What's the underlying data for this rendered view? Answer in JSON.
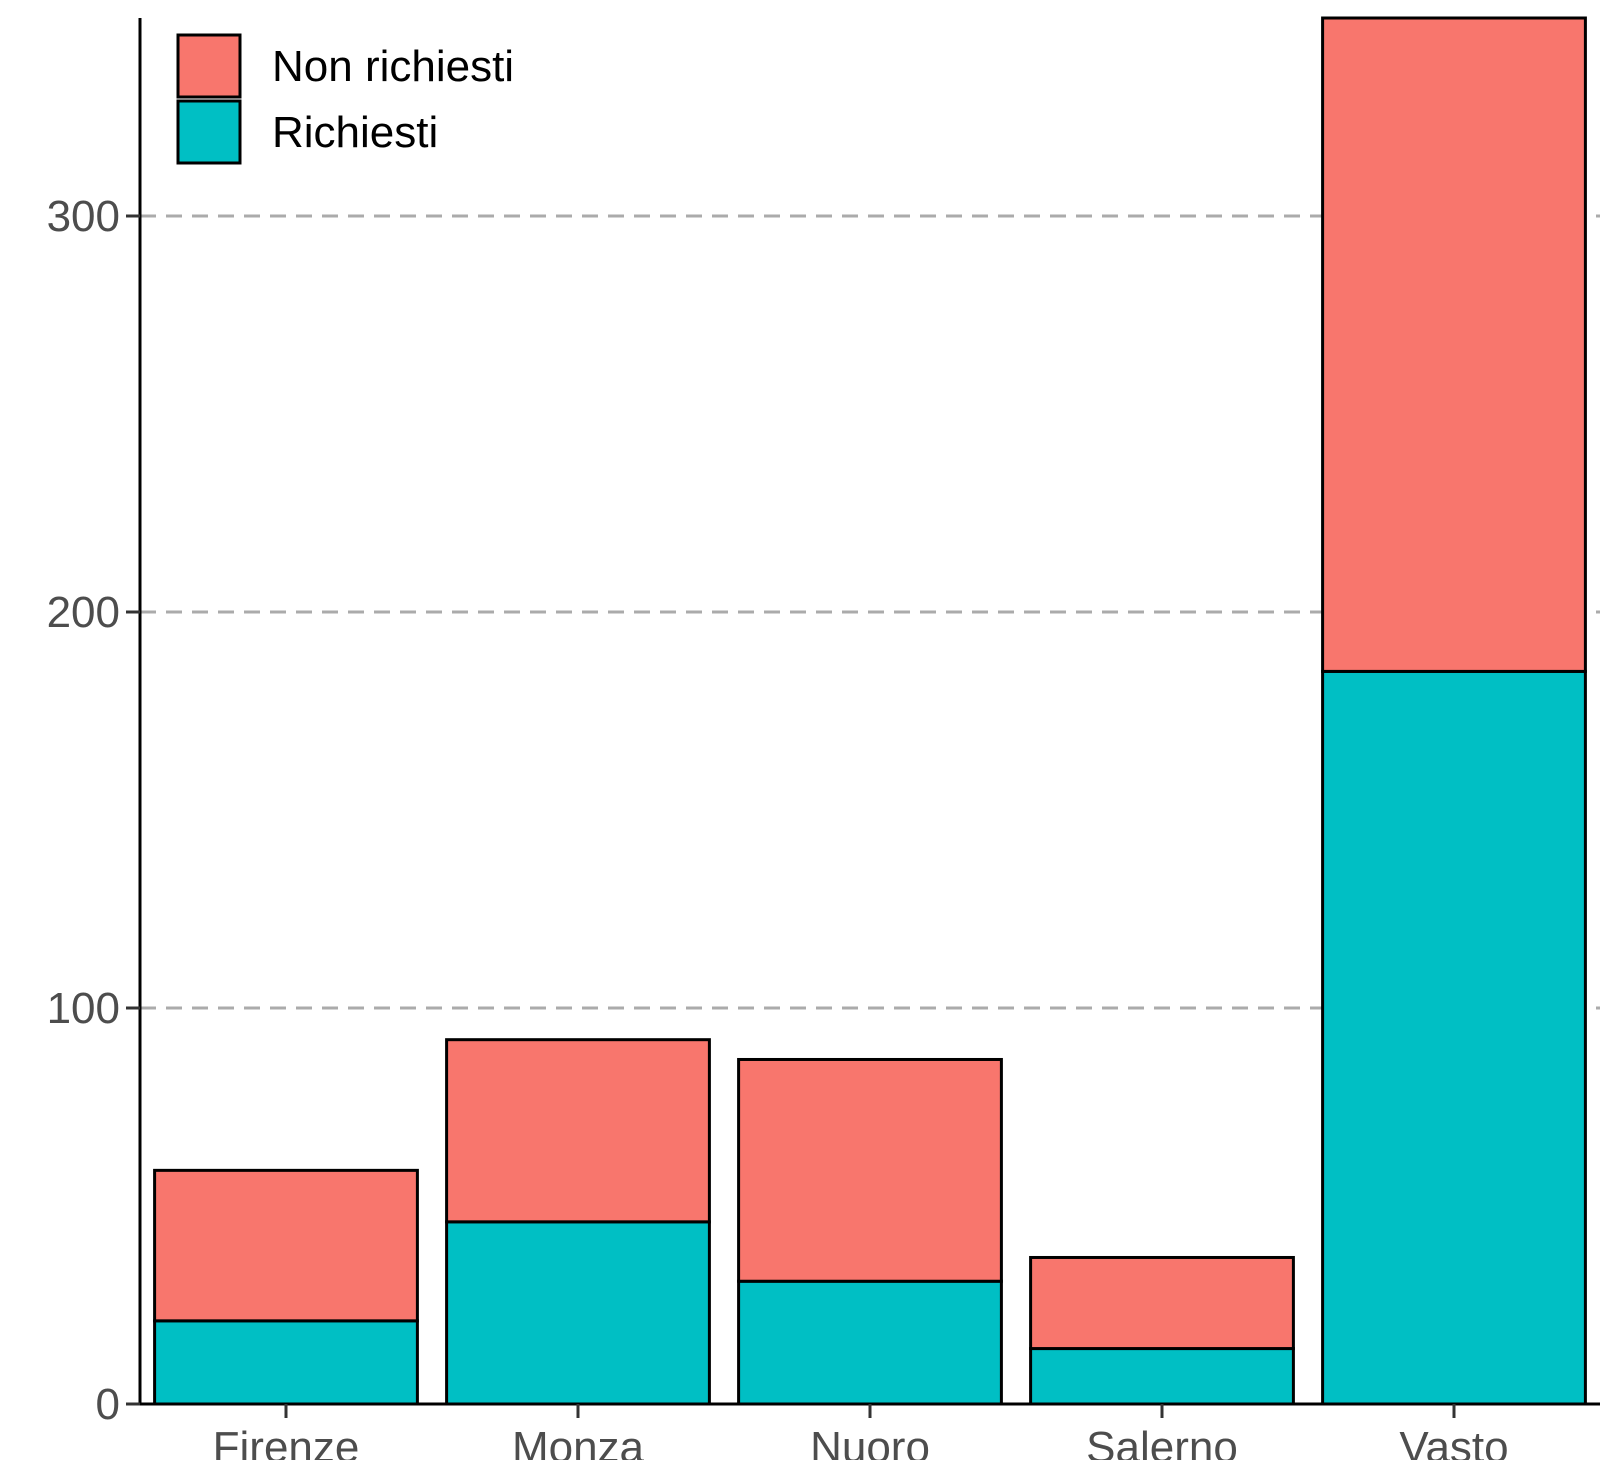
{
  "chart_data": {
    "type": "bar",
    "stacked": true,
    "title": "",
    "xlabel": "",
    "ylabel": "",
    "categories": [
      "Firenze",
      "Monza",
      "Nuoro",
      "Salerno",
      "Vasto"
    ],
    "series": [
      {
        "name": "Richiesti",
        "color": "#00BFC4",
        "values": [
          21,
          46,
          31,
          14,
          185
        ]
      },
      {
        "name": "Non richiesti",
        "color": "#F8766D",
        "values": [
          38,
          46,
          56,
          23,
          165
        ]
      }
    ],
    "legend_order": [
      "Non richiesti",
      "Richiesti"
    ],
    "ylim": [
      0,
      350
    ],
    "yticks": [
      0,
      100,
      200,
      300
    ],
    "grid": "horizontal dashed at major ticks",
    "legend_position": "top-left"
  }
}
